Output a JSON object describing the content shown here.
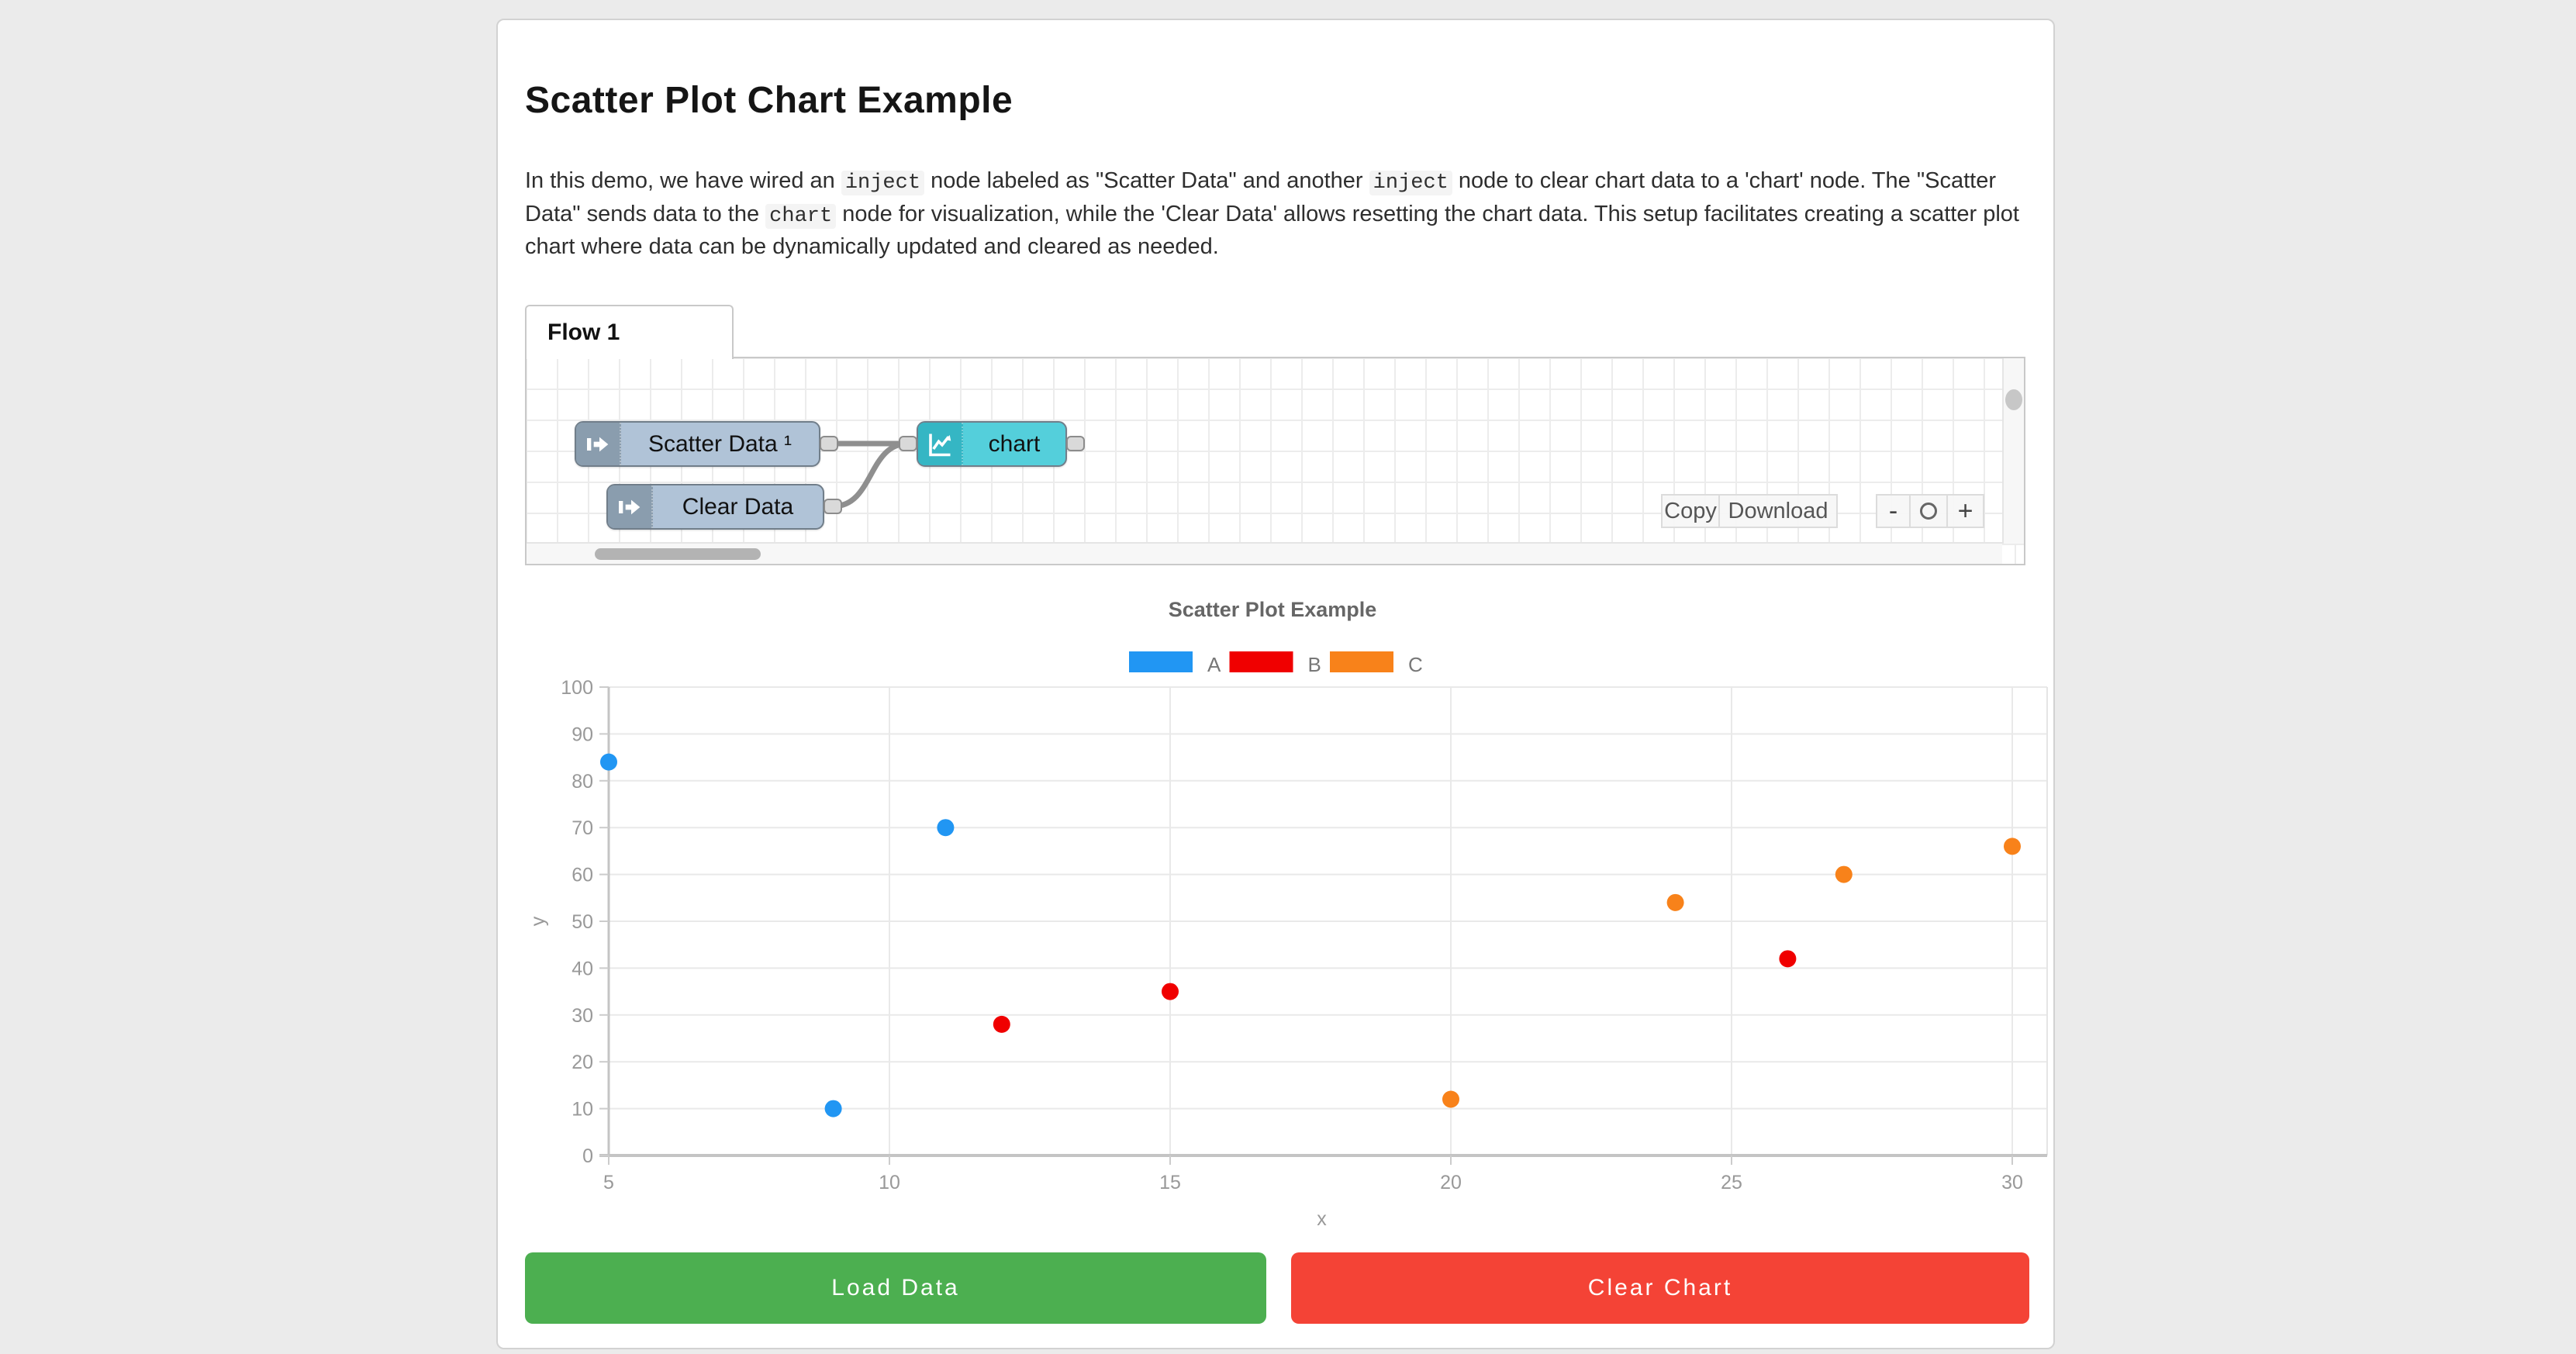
{
  "header": {
    "title": "Scatter Plot Chart Example"
  },
  "description": {
    "segments": [
      {
        "text": "In this demo, we have wired an ",
        "code": false
      },
      {
        "text": "inject",
        "code": true
      },
      {
        "text": " node labeled as \"Scatter Data\" and another ",
        "code": false
      },
      {
        "text": "inject",
        "code": true
      },
      {
        "text": " node to clear chart data to a 'chart' node. The \"Scatter Data\" sends data to the ",
        "code": false
      },
      {
        "text": "chart",
        "code": true
      },
      {
        "text": " node for visualization, while the 'Clear Data' allows resetting the chart data. This setup facilitates creating a scatter plot chart where data can be dynamically updated and cleared as needed.",
        "code": false
      }
    ]
  },
  "flow": {
    "tab_label": "Flow 1",
    "nodes": [
      {
        "id": "scatter-data",
        "type": "inject",
        "label": "Scatter Data ¹"
      },
      {
        "id": "clear-data",
        "type": "inject",
        "label": "Clear Data"
      },
      {
        "id": "chart",
        "type": "chart",
        "label": "chart"
      }
    ],
    "toolbar": {
      "copy_label": "Copy",
      "download_label": "Download",
      "zoom_out_label": "-",
      "zoom_reset_icon": "circle",
      "zoom_in_label": "+"
    }
  },
  "chart_data": {
    "type": "scatter",
    "title": "Scatter Plot Example",
    "xlabel": "x",
    "ylabel": "y",
    "xlim": [
      5,
      30
    ],
    "ylim": [
      0,
      100
    ],
    "xticks": [
      5,
      10,
      15,
      20,
      25,
      30
    ],
    "yticks": [
      0,
      10,
      20,
      30,
      40,
      50,
      60,
      70,
      80,
      90,
      100
    ],
    "grid": true,
    "legend_position": "top",
    "series": [
      {
        "name": "A",
        "color": "#2196f3",
        "points": [
          [
            5,
            84
          ],
          [
            9,
            10
          ],
          [
            11,
            70
          ]
        ]
      },
      {
        "name": "B",
        "color": "#f00000",
        "points": [
          [
            12,
            28
          ],
          [
            15,
            35
          ],
          [
            26,
            42
          ]
        ]
      },
      {
        "name": "C",
        "color": "#f8821a",
        "points": [
          [
            20,
            12
          ],
          [
            24,
            54
          ],
          [
            27,
            60
          ],
          [
            30,
            66
          ]
        ]
      }
    ]
  },
  "actions": {
    "load_label": "Load Data",
    "clear_label": "Clear Chart"
  }
}
